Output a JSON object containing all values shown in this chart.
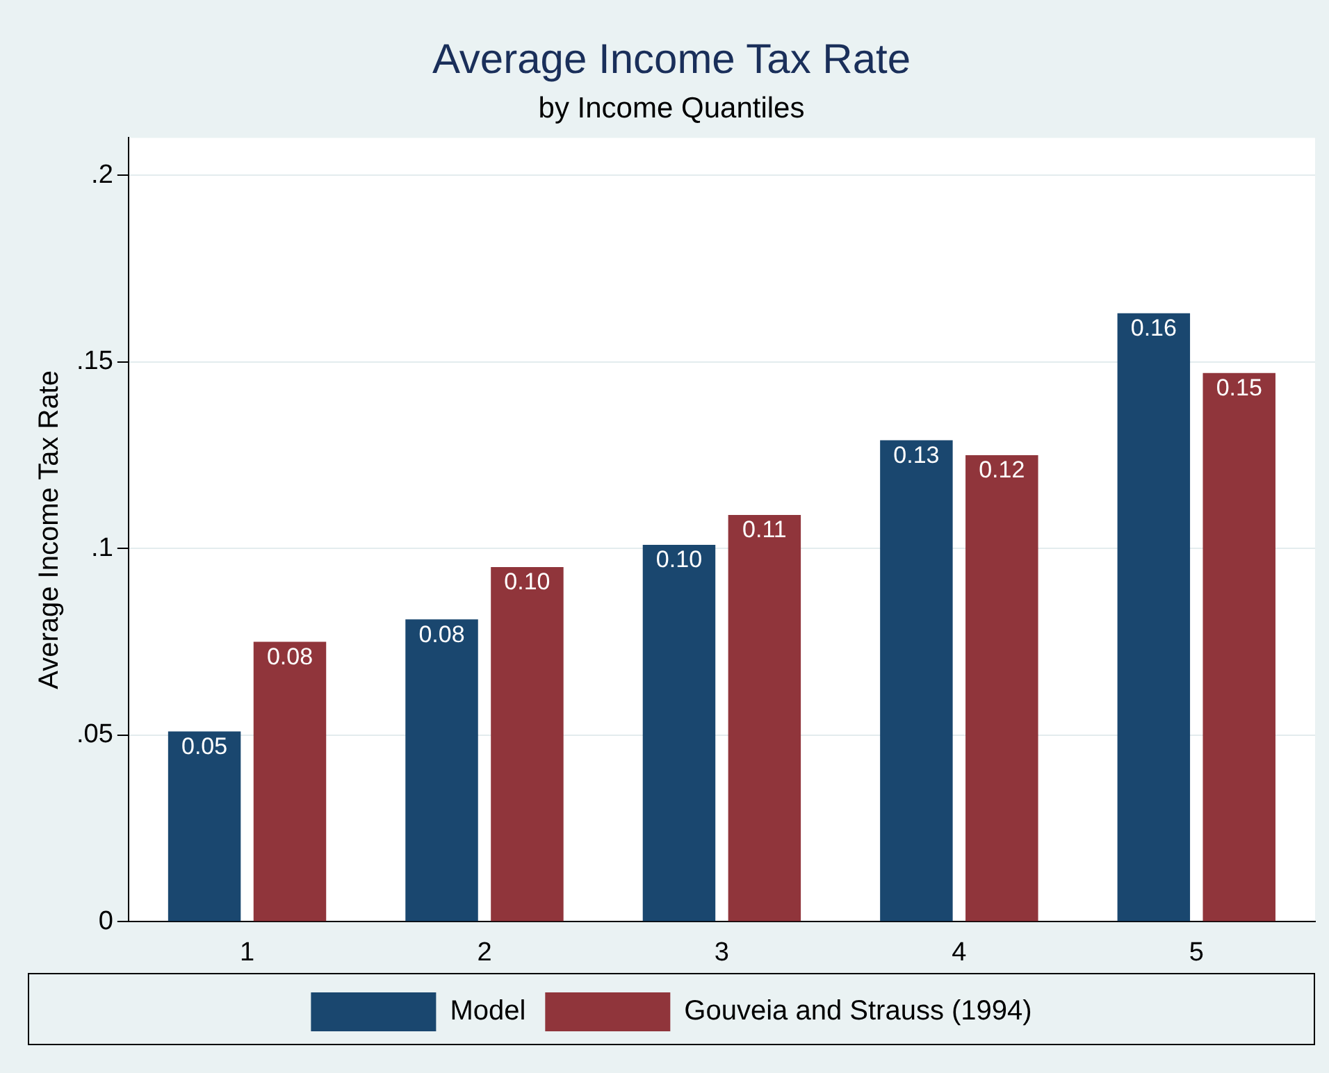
{
  "chart_data": {
    "type": "bar",
    "title": "Average Income Tax Rate",
    "subtitle": "by Income Quantiles",
    "ylabel": "Average Income Tax Rate",
    "categories": [
      "1",
      "2",
      "3",
      "4",
      "5"
    ],
    "series": [
      {
        "name": "Model",
        "color": "#1a476f",
        "values": [
          0.051,
          0.081,
          0.101,
          0.129,
          0.163
        ],
        "value_labels": [
          "0.05",
          "0.08",
          "0.10",
          "0.13",
          "0.16"
        ]
      },
      {
        "name": "Gouveia and Strauss (1994)",
        "color": "#90353b",
        "values": [
          0.075,
          0.095,
          0.109,
          0.125,
          0.147
        ],
        "value_labels": [
          "0.08",
          "0.10",
          "0.11",
          "0.12",
          "0.15"
        ]
      }
    ],
    "ylim": [
      0,
      0.21
    ],
    "yticks": [
      {
        "value": 0,
        "label": "0"
      },
      {
        "value": 0.05,
        "label": ".05"
      },
      {
        "value": 0.1,
        "label": ".1"
      },
      {
        "value": 0.15,
        "label": ".15"
      },
      {
        "value": 0.2,
        "label": ".2"
      }
    ],
    "grid": "y",
    "legend": "bottom"
  }
}
